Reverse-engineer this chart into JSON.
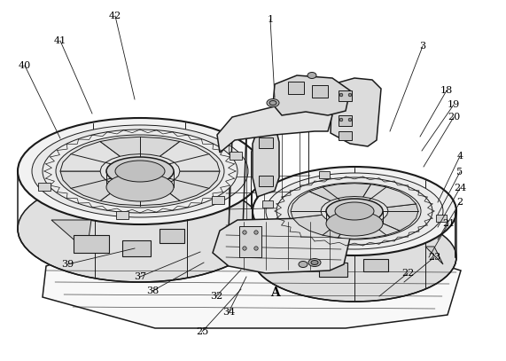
{
  "bg_color": "#ffffff",
  "line_color": "#1a1a1a",
  "label_color": "#000000",
  "figsize": [
    5.71,
    4.07
  ],
  "dpi": 100,
  "annotations": [
    [
      "1",
      305,
      22
    ],
    [
      "3",
      477,
      52
    ],
    [
      "18",
      504,
      102
    ],
    [
      "19",
      512,
      118
    ],
    [
      "20",
      512,
      132
    ],
    [
      "4",
      519,
      176
    ],
    [
      "5",
      519,
      194
    ],
    [
      "24",
      519,
      212
    ],
    [
      "2",
      519,
      228
    ],
    [
      "21",
      506,
      252
    ],
    [
      "23",
      490,
      290
    ],
    [
      "22",
      460,
      308
    ],
    [
      "25",
      228,
      374
    ],
    [
      "34",
      258,
      352
    ],
    [
      "32",
      244,
      334
    ],
    [
      "38",
      172,
      328
    ],
    [
      "37",
      158,
      312
    ],
    [
      "39",
      76,
      298
    ],
    [
      "40",
      28,
      74
    ],
    [
      "41",
      68,
      46
    ],
    [
      "42",
      130,
      18
    ],
    [
      "A",
      310,
      330
    ]
  ],
  "leader_lines": [
    [
      "1",
      305,
      22,
      310,
      110
    ],
    [
      "3",
      477,
      52,
      440,
      148
    ],
    [
      "18",
      504,
      102,
      474,
      154
    ],
    [
      "19",
      512,
      118,
      476,
      170
    ],
    [
      "20",
      512,
      132,
      478,
      188
    ],
    [
      "4",
      519,
      176,
      494,
      228
    ],
    [
      "5",
      519,
      194,
      494,
      242
    ],
    [
      "24",
      519,
      212,
      494,
      256
    ],
    [
      "2",
      519,
      228,
      494,
      270
    ],
    [
      "21",
      506,
      252,
      484,
      290
    ],
    [
      "23",
      490,
      290,
      456,
      318
    ],
    [
      "22",
      460,
      308,
      428,
      334
    ],
    [
      "25",
      228,
      374,
      272,
      326
    ],
    [
      "34",
      258,
      352,
      278,
      312
    ],
    [
      "32",
      244,
      334,
      272,
      304
    ],
    [
      "38",
      172,
      328,
      230,
      296
    ],
    [
      "37",
      158,
      312,
      226,
      284
    ],
    [
      "39",
      76,
      298,
      152,
      280
    ],
    [
      "40",
      28,
      74,
      68,
      156
    ],
    [
      "41",
      68,
      46,
      104,
      128
    ],
    [
      "42",
      130,
      18,
      152,
      112
    ]
  ]
}
